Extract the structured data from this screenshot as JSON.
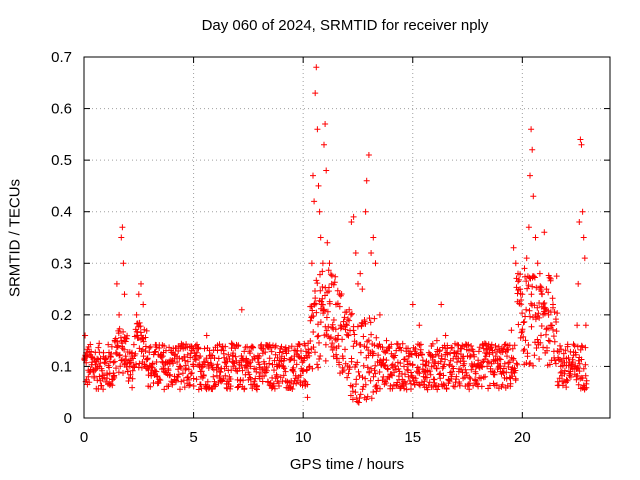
{
  "chart_data": {
    "type": "scatter",
    "title": "Day 060 of 2024, SRMTID for receiver nply",
    "xlabel": "GPS time / hours",
    "ylabel": "SRMTID / TECUs",
    "xlim": [
      0,
      24
    ],
    "ylim": [
      0,
      0.7
    ],
    "xticks": [
      0,
      5,
      10,
      15,
      20
    ],
    "yticks": [
      0,
      0.1,
      0.2,
      0.3,
      0.4,
      0.5,
      0.6,
      0.7
    ],
    "grid": true,
    "marker": "+",
    "color": "#ff0000",
    "generated_background_note": "dense background cloud generated in script from smooth trend",
    "series": [
      {
        "name": "SRMTID",
        "x": [
          0.05,
          0.1,
          0.3,
          0.5,
          0.7,
          1.0,
          1.2,
          1.4,
          1.5,
          1.6,
          1.7,
          1.75,
          1.8,
          1.85,
          1.9,
          2.0,
          2.2,
          2.4,
          2.5,
          2.6,
          2.7,
          2.8,
          3.0,
          3.3,
          3.6,
          4.0,
          4.3,
          4.6,
          5.0,
          5.3,
          5.6,
          5.9,
          6.2,
          6.5,
          6.8,
          7.2,
          7.4,
          7.6,
          8.0,
          8.4,
          8.8,
          9.2,
          9.6,
          9.9,
          10.1,
          10.2,
          10.3,
          10.4,
          10.45,
          10.5,
          10.55,
          10.6,
          10.65,
          10.7,
          10.75,
          10.8,
          10.85,
          10.9,
          10.95,
          11.0,
          11.05,
          11.1,
          11.2,
          11.3,
          11.4,
          11.5,
          11.6,
          11.8,
          12.0,
          12.1,
          12.2,
          12.3,
          12.4,
          12.5,
          12.6,
          12.7,
          12.8,
          12.85,
          12.9,
          13.0,
          13.1,
          13.2,
          13.3,
          13.5,
          13.8,
          14.1,
          14.4,
          14.6,
          14.8,
          15.0,
          15.3,
          15.6,
          15.9,
          16.1,
          16.3,
          16.5,
          16.8,
          17.1,
          17.5,
          17.9,
          18.3,
          18.7,
          19.0,
          19.3,
          19.5,
          19.6,
          19.7,
          19.8,
          19.9,
          20.0,
          20.1,
          20.2,
          20.3,
          20.35,
          20.4,
          20.45,
          20.5,
          20.6,
          20.7,
          20.8,
          20.9,
          21.0,
          21.1,
          21.2,
          21.3,
          21.4,
          21.6,
          21.8,
          22.0,
          22.2,
          22.4,
          22.5,
          22.55,
          22.6,
          22.65,
          22.7,
          22.75,
          22.8,
          22.85,
          22.9
        ],
        "y": [
          0.16,
          0.12,
          0.09,
          0.11,
          0.1,
          0.07,
          0.12,
          0.15,
          0.26,
          0.2,
          0.35,
          0.37,
          0.3,
          0.24,
          0.12,
          0.09,
          0.12,
          0.2,
          0.24,
          0.26,
          0.22,
          0.13,
          0.1,
          0.09,
          0.12,
          0.11,
          0.13,
          0.06,
          0.1,
          0.12,
          0.16,
          0.08,
          0.09,
          0.1,
          0.12,
          0.21,
          0.11,
          0.1,
          0.12,
          0.14,
          0.1,
          0.09,
          0.12,
          0.13,
          0.07,
          0.04,
          0.1,
          0.3,
          0.47,
          0.42,
          0.63,
          0.68,
          0.56,
          0.45,
          0.4,
          0.35,
          0.22,
          0.3,
          0.53,
          0.57,
          0.48,
          0.34,
          0.3,
          0.26,
          0.19,
          0.22,
          0.16,
          0.12,
          0.18,
          0.21,
          0.38,
          0.39,
          0.32,
          0.26,
          0.28,
          0.25,
          0.19,
          0.4,
          0.46,
          0.51,
          0.32,
          0.35,
          0.3,
          0.2,
          0.15,
          0.12,
          0.09,
          0.1,
          0.08,
          0.22,
          0.18,
          0.09,
          0.12,
          0.15,
          0.22,
          0.16,
          0.1,
          0.09,
          0.12,
          0.1,
          0.08,
          0.11,
          0.09,
          0.12,
          0.17,
          0.33,
          0.3,
          0.28,
          0.25,
          0.24,
          0.29,
          0.31,
          0.37,
          0.47,
          0.56,
          0.52,
          0.43,
          0.35,
          0.3,
          0.25,
          0.24,
          0.36,
          0.25,
          0.2,
          0.18,
          0.22,
          0.13,
          0.11,
          0.06,
          0.09,
          0.1,
          0.18,
          0.26,
          0.38,
          0.54,
          0.53,
          0.4,
          0.35,
          0.31,
          0.18
        ]
      }
    ]
  }
}
